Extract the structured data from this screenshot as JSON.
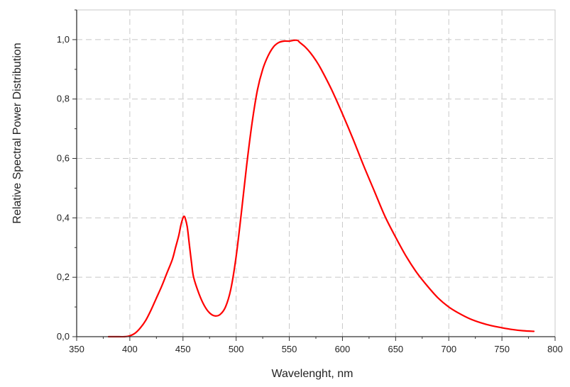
{
  "chart_data": {
    "type": "line",
    "title": "",
    "xlabel": "Wavelenght, nm",
    "ylabel": "Relative Spectral Power Distribution",
    "xlim": [
      350,
      800
    ],
    "ylim": [
      0.0,
      1.1
    ],
    "x_ticks": [
      350,
      400,
      450,
      500,
      550,
      600,
      650,
      700,
      750,
      800
    ],
    "x_tick_labels": [
      "350",
      "400",
      "450",
      "500",
      "550",
      "600",
      "650",
      "700",
      "750",
      "800"
    ],
    "y_ticks": [
      0.0,
      0.2,
      0.4,
      0.6,
      0.8,
      1.0
    ],
    "y_tick_labels": [
      "0,0",
      "0,2",
      "0,4",
      "0,6",
      "0,8",
      "1,0"
    ],
    "grid": true,
    "grid_style": "dashed",
    "legend": "none",
    "line_color": "#ff0000",
    "grid_color": "#c8c8c8",
    "axis_color": "#333333",
    "series": [
      {
        "x": [
          380,
          390,
          395,
          400,
          405,
          410,
          415,
          420,
          425,
          430,
          435,
          440,
          443,
          446,
          448,
          450,
          451,
          452,
          454,
          456,
          458,
          460,
          465,
          470,
          475,
          480,
          485,
          490,
          495,
          500,
          505,
          510,
          515,
          520,
          525,
          530,
          535,
          540,
          545,
          550,
          555,
          558,
          560,
          565,
          570,
          575,
          580,
          590,
          600,
          610,
          620,
          630,
          640,
          650,
          660,
          670,
          680,
          690,
          700,
          710,
          720,
          730,
          740,
          750,
          760,
          770,
          780
        ],
        "y": [
          0.0,
          0.0,
          0.0,
          0.003,
          0.012,
          0.03,
          0.055,
          0.09,
          0.13,
          0.17,
          0.215,
          0.26,
          0.3,
          0.34,
          0.375,
          0.4,
          0.405,
          0.4,
          0.37,
          0.31,
          0.25,
          0.2,
          0.145,
          0.105,
          0.08,
          0.07,
          0.075,
          0.1,
          0.16,
          0.27,
          0.42,
          0.58,
          0.72,
          0.83,
          0.9,
          0.945,
          0.975,
          0.99,
          0.995,
          0.995,
          0.998,
          0.997,
          0.99,
          0.975,
          0.955,
          0.93,
          0.9,
          0.83,
          0.75,
          0.665,
          0.575,
          0.49,
          0.405,
          0.335,
          0.27,
          0.215,
          0.17,
          0.13,
          0.1,
          0.078,
          0.06,
          0.047,
          0.037,
          0.03,
          0.024,
          0.02,
          0.018
        ]
      }
    ]
  }
}
